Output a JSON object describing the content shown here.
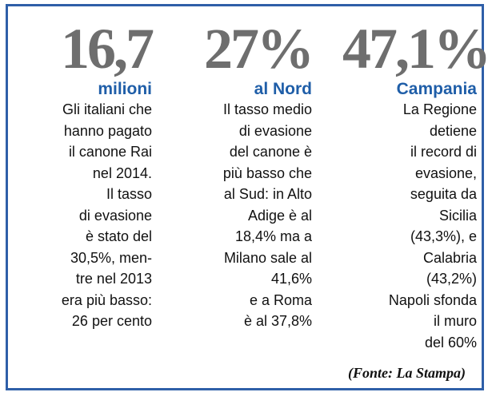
{
  "columns": [
    {
      "figure": "16,7",
      "label": "milioni",
      "lines": [
        "Gli italiani che",
        "hanno pagato",
        "il canone Rai",
        "nel 2014.",
        "Il tasso",
        "di evasione",
        "è stato del",
        "30,5%, men-",
        "tre nel 2013",
        "era più basso:",
        "26 per cento"
      ]
    },
    {
      "figure": "27%",
      "label": "al Nord",
      "lines": [
        "Il tasso medio",
        "di evasione",
        "del canone è",
        "più basso che",
        "al Sud: in Alto",
        "Adige è al",
        "18,4% ma a",
        "Milano sale al",
        "41,6%",
        "e a Roma",
        "è al 37,8%"
      ]
    },
    {
      "figure": "47,1%",
      "label": "Campania",
      "lines": [
        "La Regione",
        "detiene",
        "il record di",
        "evasione,",
        "seguita da",
        "Sicilia",
        "(43,3%), e",
        "Calabria",
        "(43,2%)",
        "Napoli sfonda",
        "il muro",
        "del 60%"
      ]
    }
  ],
  "source": "(Fonte:  La Stampa)",
  "colors": {
    "border": "#2f5fa8",
    "label": "#1f5ea8",
    "figure": "#6e6e6e"
  }
}
